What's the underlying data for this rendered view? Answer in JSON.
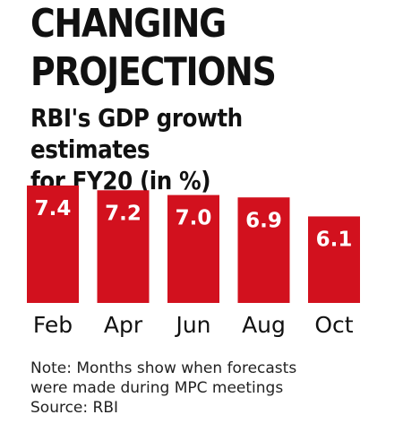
{
  "title": "CHANGING\nPROJECTIONS",
  "subtitle": "RBI's GDP growth estimates\nfor FY20 (in %)",
  "note": "Note: Months show when forecasts\nwere made during MPC meetings",
  "source": "Source: RBI",
  "colors": {
    "bar": "#d2111e",
    "label": "#ffffff",
    "text": "#111111"
  },
  "chart_data": {
    "type": "bar",
    "categories": [
      "Feb",
      "Apr",
      "Jun",
      "Aug",
      "Oct"
    ],
    "values": [
      7.4,
      7.2,
      7.0,
      6.9,
      6.1
    ],
    "value_labels": [
      "7.4",
      "7.2",
      "7.0",
      "6.9",
      "6.1"
    ],
    "title": "CHANGING PROJECTIONS",
    "subtitle": "RBI's GDP growth estimates for FY20 (in %)",
    "xlabel": "",
    "ylabel": "",
    "grid": false,
    "legend": "none"
  }
}
